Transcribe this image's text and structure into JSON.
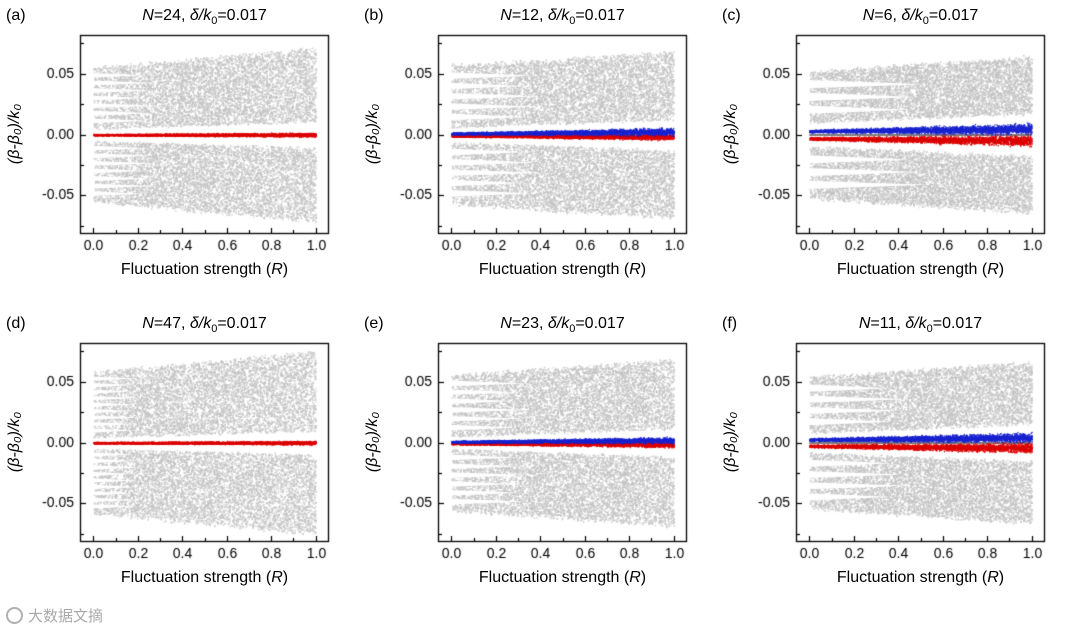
{
  "colors": {
    "background": "#ffffff",
    "gray_band": "#c3c3c3",
    "red": "#dd0000",
    "blue": "#1822cf",
    "axis": "#000000",
    "text": "#000000",
    "watermark": "#a0a0a0"
  },
  "axes": {
    "xlabel_pre": "Fluctuation strength (",
    "xlabel_var": "R",
    "xlabel_post": ")",
    "ylabel": "(β-β₀)/k₀",
    "xlim": [
      0,
      1
    ],
    "ylim": [
      -0.082,
      0.082
    ],
    "x_display_pad": [
      -0.06,
      1.06
    ],
    "xtick_values": [
      0.0,
      0.2,
      0.4,
      0.6,
      0.8,
      1.0
    ],
    "xtick_labels": [
      "0.0",
      "0.2",
      "0.4",
      "0.6",
      "0.8",
      "1.0"
    ],
    "ytick_values": [
      0.05,
      0.0,
      -0.05
    ],
    "ytick_labels": [
      "0.05",
      "0.00",
      "-0.05"
    ],
    "grid": false,
    "legend": false
  },
  "watermark": {
    "text": "大数据文摘",
    "icon": "digest-logo"
  },
  "chart_data": [
    {
      "panel_label": "(a)",
      "type": "scatter",
      "title": "N=24, δ/k₀=0.017",
      "title_parts": {
        "v1": "N",
        "m1": "=24, ",
        "v2": "δ/k",
        "sub": "0",
        "m2": "=0.017"
      },
      "N": 24,
      "delta_over_k0": 0.017,
      "series": [
        {
          "name": "unstable-band-upper",
          "kind": "band",
          "sign": 1,
          "color": "#c3c3c3",
          "outer": [
            0.055,
            0.071
          ],
          "inner": [
            0.005,
            0.011
          ],
          "comb_lines": 8,
          "comb_reach": 0.3
        },
        {
          "name": "unstable-band-lower",
          "kind": "band",
          "sign": -1,
          "color": "#c3c3c3",
          "outer": [
            0.055,
            0.071
          ],
          "inner": [
            0.005,
            0.011
          ],
          "comb_lines": 8,
          "comb_reach": 0.3
        },
        {
          "name": "stable-branch-red",
          "kind": "scatter-line",
          "color": "#dd0000",
          "center": [
            0.0,
            0.0
          ],
          "halfwidth": [
            0.0008,
            0.0022
          ]
        }
      ]
    },
    {
      "panel_label": "(b)",
      "type": "scatter",
      "title": "N=12, δ/k₀=0.017",
      "title_parts": {
        "v1": "N",
        "m1": "=12, ",
        "v2": "δ/k",
        "sub": "0",
        "m2": "=0.017"
      },
      "N": 12,
      "delta_over_k0": 0.017,
      "series": [
        {
          "name": "unstable-band-upper",
          "kind": "band",
          "sign": 1,
          "color": "#c3c3c3",
          "outer": [
            0.057,
            0.068
          ],
          "inner": [
            0.006,
            0.013
          ],
          "comb_lines": 6,
          "comb_reach": 0.42
        },
        {
          "name": "unstable-band-lower",
          "kind": "band",
          "sign": -1,
          "color": "#c3c3c3",
          "outer": [
            0.057,
            0.068
          ],
          "inner": [
            0.006,
            0.013
          ],
          "comb_lines": 6,
          "comb_reach": 0.42
        },
        {
          "name": "stable-branch-red",
          "kind": "scatter-line",
          "color": "#dd0000",
          "center": [
            -0.0008,
            -0.0018
          ],
          "halfwidth": [
            0.001,
            0.0032
          ]
        },
        {
          "name": "stable-branch-blue",
          "kind": "scatter-line",
          "color": "#1822cf",
          "center": [
            0.001,
            0.0026
          ],
          "halfwidth": [
            0.0012,
            0.004
          ]
        }
      ]
    },
    {
      "panel_label": "(c)",
      "type": "scatter",
      "title": "N=6, δ/k₀=0.017",
      "title_parts": {
        "v1": "N",
        "m1": "=6, ",
        "v2": "δ/k",
        "sub": "0",
        "m2": "=0.017"
      },
      "N": 6,
      "delta_over_k0": 0.017,
      "series": [
        {
          "name": "unstable-band-upper",
          "kind": "band",
          "sign": 1,
          "color": "#c3c3c3",
          "outer": [
            0.052,
            0.064
          ],
          "inner": [
            0.01,
            0.018
          ],
          "comb_lines": 4,
          "comb_reach": 0.55
        },
        {
          "name": "unstable-band-lower",
          "kind": "band",
          "sign": -1,
          "color": "#c3c3c3",
          "outer": [
            0.052,
            0.064
          ],
          "inner": [
            0.01,
            0.018
          ],
          "comb_lines": 4,
          "comb_reach": 0.55
        },
        {
          "name": "zero-line",
          "kind": "hline",
          "y": 0.0,
          "color": "#000000"
        },
        {
          "name": "stable-branch-red",
          "kind": "scatter-line",
          "color": "#dd0000",
          "center": [
            -0.003,
            -0.0048
          ],
          "halfwidth": [
            0.0014,
            0.0058
          ]
        },
        {
          "name": "stable-branch-blue",
          "kind": "scatter-line",
          "color": "#1822cf",
          "center": [
            0.003,
            0.0048
          ],
          "halfwidth": [
            0.0014,
            0.0058
          ]
        }
      ]
    },
    {
      "panel_label": "(d)",
      "type": "scatter",
      "title": "N=47, δ/k₀=0.017",
      "title_parts": {
        "v1": "N",
        "m1": "=47, ",
        "v2": "δ/k",
        "sub": "0",
        "m2": "=0.017"
      },
      "N": 47,
      "delta_over_k0": 0.017,
      "series": [
        {
          "name": "unstable-band-upper",
          "kind": "band",
          "sign": 1,
          "color": "#c3c3c3",
          "outer": [
            0.058,
            0.075
          ],
          "inner": [
            0.0045,
            0.01
          ],
          "comb_lines": 10,
          "comb_reach": 0.22
        },
        {
          "name": "unstable-band-lower",
          "kind": "band",
          "sign": -1,
          "color": "#c3c3c3",
          "outer": [
            0.058,
            0.075
          ],
          "inner": [
            0.0045,
            0.01
          ],
          "comb_lines": 10,
          "comb_reach": 0.22
        },
        {
          "name": "stable-branch-red",
          "kind": "scatter-line",
          "color": "#dd0000",
          "center": [
            0.0,
            0.0
          ],
          "halfwidth": [
            0.0008,
            0.002
          ]
        }
      ]
    },
    {
      "panel_label": "(e)",
      "type": "scatter",
      "title": "N=23, δ/k₀=0.017",
      "title_parts": {
        "v1": "N",
        "m1": "=23, ",
        "v2": "δ/k",
        "sub": "0",
        "m2": "=0.017"
      },
      "N": 23,
      "delta_over_k0": 0.017,
      "series": [
        {
          "name": "unstable-band-upper",
          "kind": "band",
          "sign": 1,
          "color": "#c3c3c3",
          "outer": [
            0.056,
            0.068
          ],
          "inner": [
            0.005,
            0.012
          ],
          "comb_lines": 7,
          "comb_reach": 0.36
        },
        {
          "name": "unstable-band-lower",
          "kind": "band",
          "sign": -1,
          "color": "#c3c3c3",
          "outer": [
            0.056,
            0.068
          ],
          "inner": [
            0.005,
            0.012
          ],
          "comb_lines": 7,
          "comb_reach": 0.36
        },
        {
          "name": "stable-branch-red",
          "kind": "scatter-line",
          "color": "#dd0000",
          "center": [
            -0.0006,
            -0.0016
          ],
          "halfwidth": [
            0.0009,
            0.0028
          ]
        },
        {
          "name": "stable-branch-blue",
          "kind": "scatter-line",
          "color": "#1822cf",
          "center": [
            0.0008,
            0.0022
          ],
          "halfwidth": [
            0.001,
            0.0034
          ]
        }
      ]
    },
    {
      "panel_label": "(f)",
      "type": "scatter",
      "title": "N=11, δ/k₀=0.017",
      "title_parts": {
        "v1": "N",
        "m1": "=11, ",
        "v2": "δ/k",
        "sub": "0",
        "m2": "=0.017"
      },
      "N": 11,
      "delta_over_k0": 0.017,
      "series": [
        {
          "name": "unstable-band-upper",
          "kind": "band",
          "sign": 1,
          "color": "#c3c3c3",
          "outer": [
            0.054,
            0.066
          ],
          "inner": [
            0.008,
            0.016
          ],
          "comb_lines": 5,
          "comb_reach": 0.46
        },
        {
          "name": "unstable-band-lower",
          "kind": "band",
          "sign": -1,
          "color": "#c3c3c3",
          "outer": [
            0.054,
            0.066
          ],
          "inner": [
            0.008,
            0.016
          ],
          "comb_lines": 5,
          "comb_reach": 0.46
        },
        {
          "name": "zero-line",
          "kind": "hline",
          "y": 0.0,
          "color": "#000000"
        },
        {
          "name": "stable-branch-red",
          "kind": "scatter-line",
          "color": "#dd0000",
          "center": [
            -0.0026,
            -0.0042
          ],
          "halfwidth": [
            0.0014,
            0.0052
          ]
        },
        {
          "name": "stable-branch-blue",
          "kind": "scatter-line",
          "color": "#1822cf",
          "center": [
            0.0026,
            0.0042
          ],
          "halfwidth": [
            0.0014,
            0.0052
          ]
        }
      ]
    }
  ]
}
